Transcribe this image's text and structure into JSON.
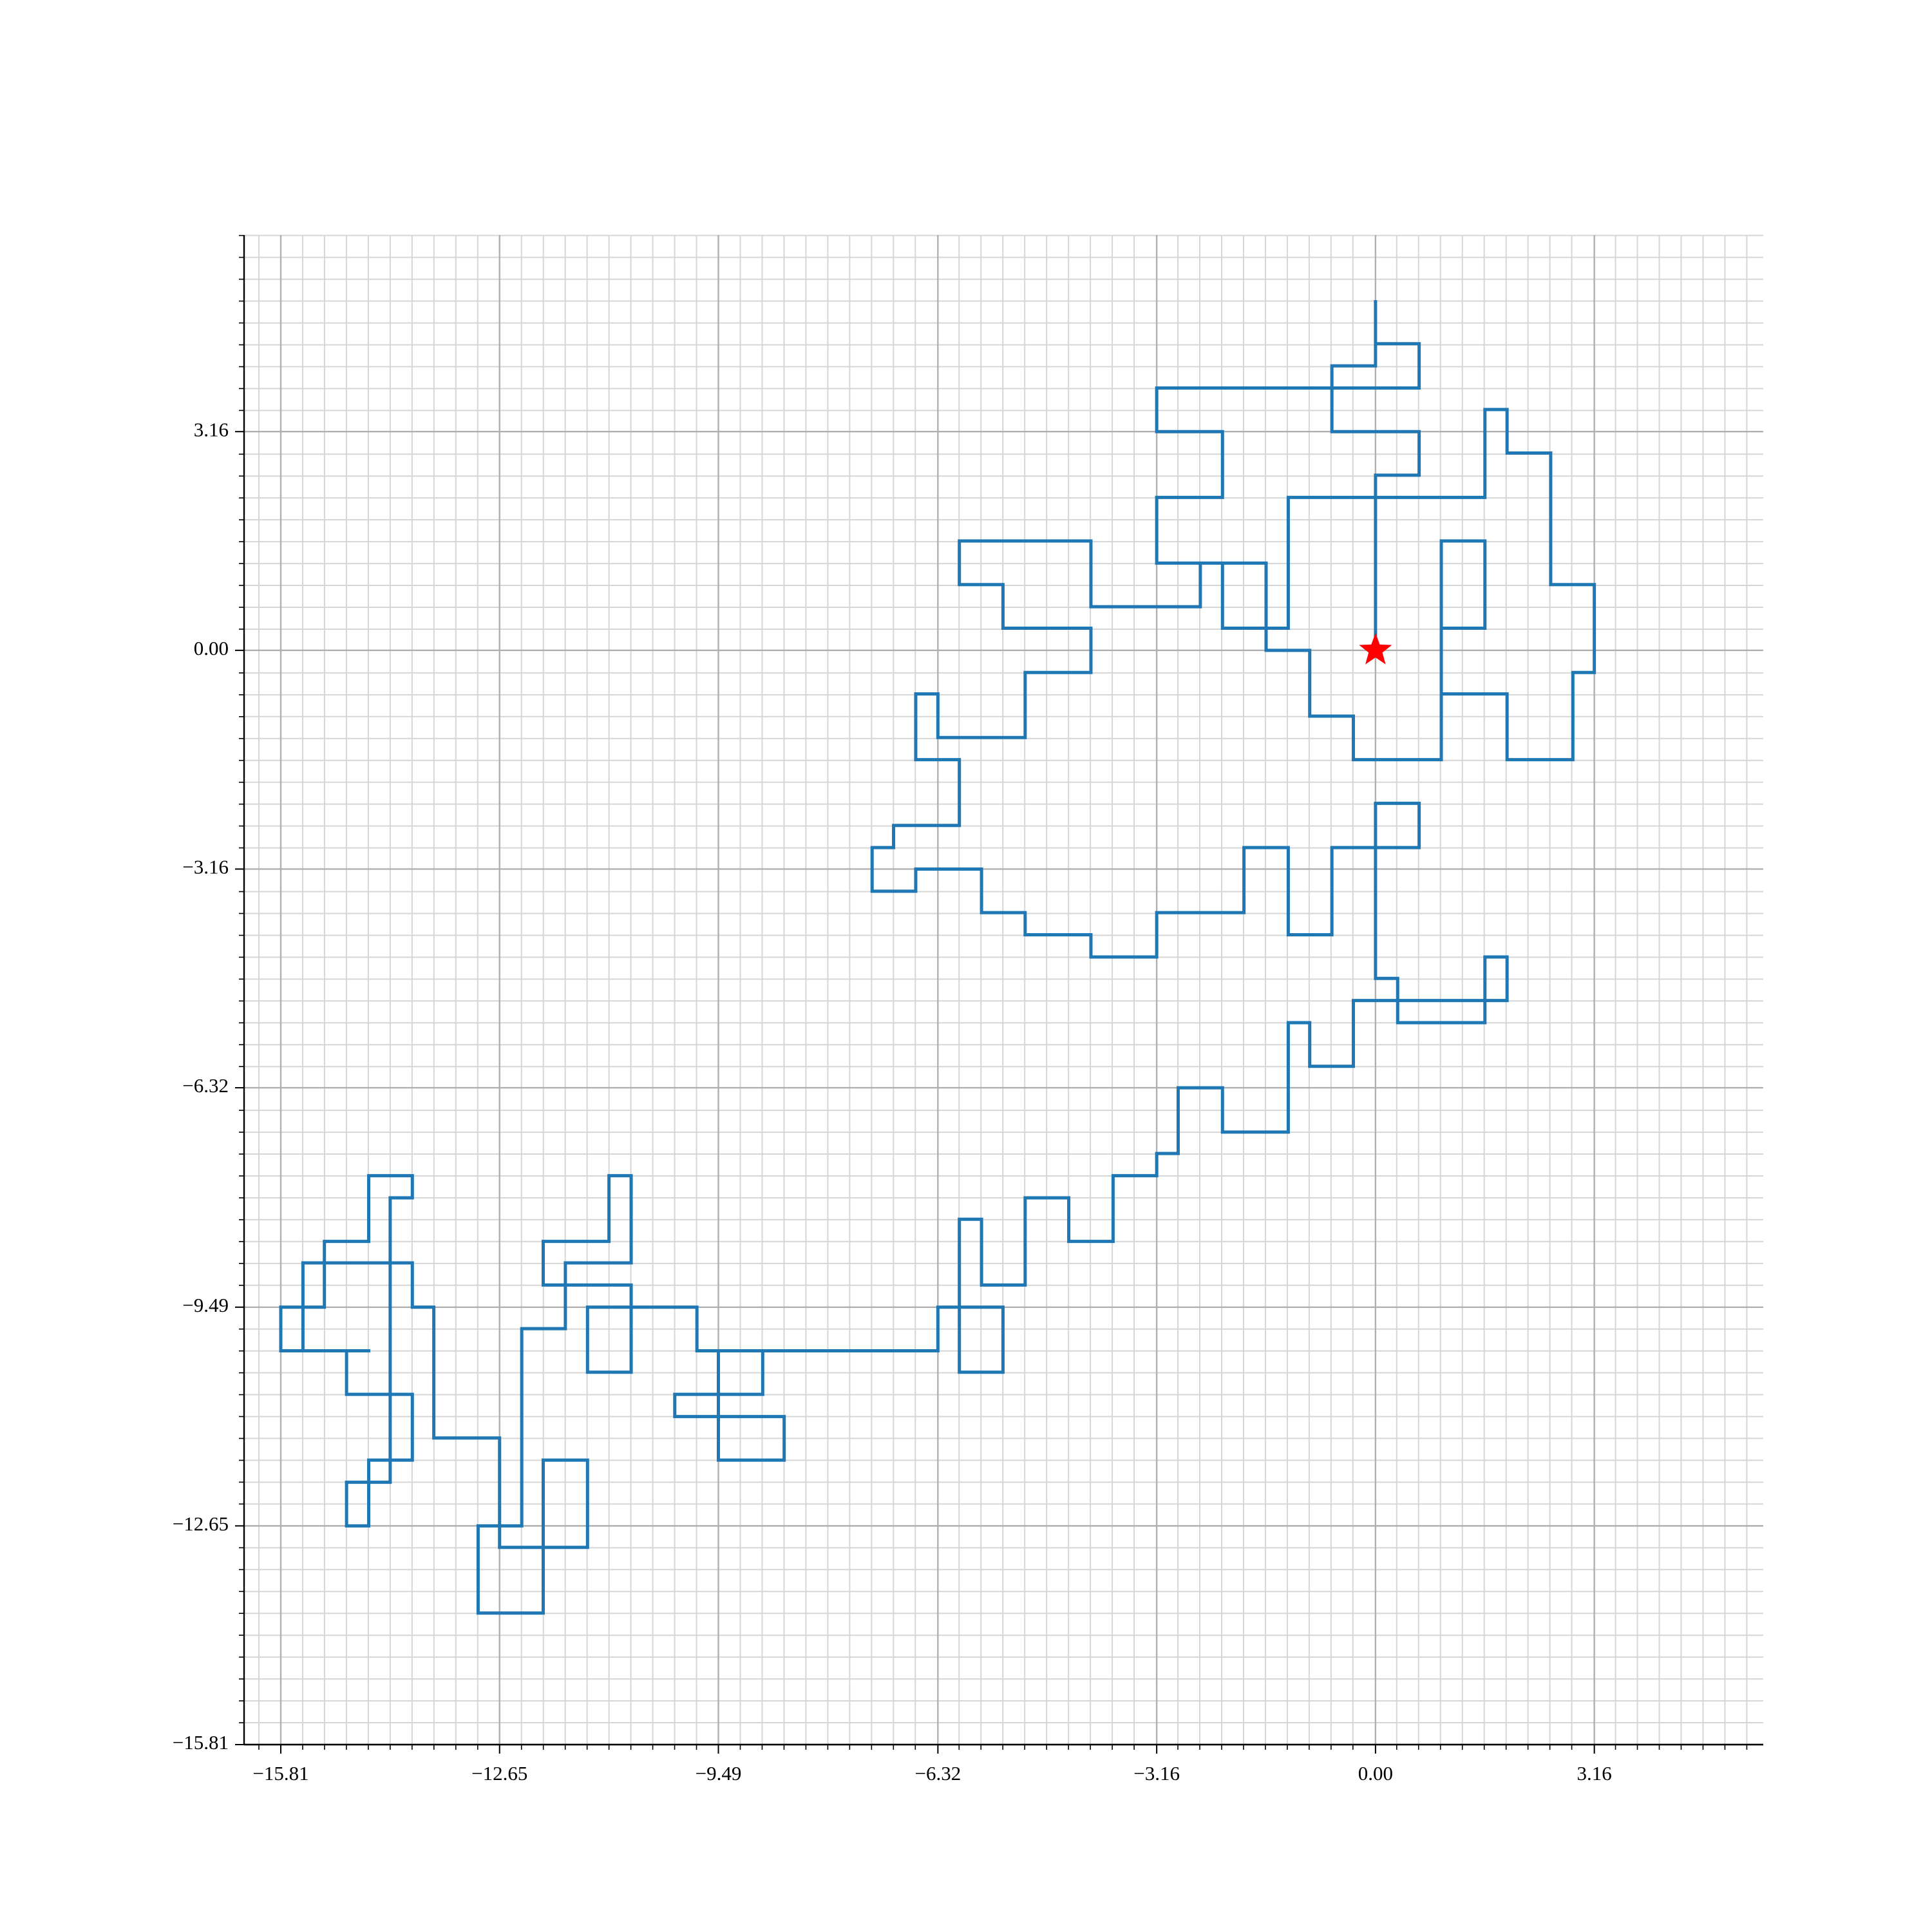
{
  "chart_data": {
    "type": "line",
    "color": "#1f77b4",
    "grid": true,
    "minor_divisions": 10,
    "xlim": [
      -16.34,
      5.6
    ],
    "ylim": [
      -15.81,
      6.0
    ],
    "xticks": [
      {
        "value": -15.81,
        "label": "−15.81"
      },
      {
        "value": -12.65,
        "label": "−12.65"
      },
      {
        "value": -9.49,
        "label": "−9.49"
      },
      {
        "value": -6.32,
        "label": "−6.32"
      },
      {
        "value": -3.16,
        "label": "−3.16"
      },
      {
        "value": 0,
        "label": "0.00"
      },
      3.16
    ],
    "yticks": [
      {
        "value": -15.81,
        "label": "−15.81"
      },
      {
        "value": -12.65,
        "label": "−12.65"
      },
      {
        "value": -9.49,
        "label": "−9.49"
      },
      {
        "value": -6.32,
        "label": "−6.32"
      },
      {
        "value": -3.16,
        "label": "−3.16"
      },
      {
        "value": 0,
        "label": "0.00"
      },
      3.16
    ],
    "start_marker": {
      "x": 0,
      "y": 0,
      "color": "#ff0000"
    },
    "x": [
      0,
      0,
      0.63,
      0.63,
      -0.63,
      -0.63,
      0,
      0,
      0,
      0.63,
      0.63,
      -3.16,
      -3.16,
      -2.21,
      -2.21,
      -3.16,
      -3.16,
      -2.21,
      -2.21,
      -1.26,
      -1.26,
      1.58,
      1.58,
      1.9,
      1.9,
      2.53,
      2.53,
      3.16,
      3.16,
      2.85,
      2.85,
      1.9,
      1.9,
      0.95,
      0.95,
      1.58,
      1.58,
      0.95,
      0.95,
      -0.32,
      -0.32,
      -0.95,
      -0.95,
      -1.58,
      -1.58,
      -2.53,
      -2.53,
      -4.11,
      -4.11,
      -6.01,
      -6.01,
      -5.38,
      -5.38,
      -4.11,
      -4.11,
      -5.06,
      -5.06,
      -6.32,
      -6.32,
      -6.64,
      -6.64,
      -6.01,
      -6.01,
      -6.96,
      -6.96,
      -7.27,
      -7.27,
      -6.64,
      -6.64,
      -5.69,
      -5.69,
      -5.06,
      -5.06,
      -4.11,
      -4.11,
      -3.16,
      -3.16,
      -1.9,
      -1.9,
      -1.26,
      -1.26,
      -0.63,
      -0.63,
      0.63,
      0.63,
      0,
      0,
      0.32,
      0.32,
      1.58,
      1.58,
      1.9,
      1.9,
      -0.32,
      -0.32,
      -0.95,
      -0.95,
      -1.26,
      -1.26,
      -2.21,
      -2.21,
      -2.85,
      -2.85,
      -3.16,
      -3.16,
      -3.79,
      -3.79,
      -4.43,
      -4.43,
      -5.06,
      -5.06,
      -5.69,
      -5.69,
      -6.01,
      -6.01,
      -5.38,
      -5.38,
      -6.32,
      -6.32,
      -9.49,
      -9.49,
      -8.54,
      -8.54,
      -10.12,
      -10.12,
      -8.85,
      -8.85,
      -9.8,
      -9.8,
      -11.38,
      -11.38,
      -10.75,
      -10.75,
      -12.02,
      -12.02,
      -11.07,
      -11.07,
      -10.75,
      -10.75,
      -11.7,
      -11.7,
      -12.33,
      -12.33,
      -12.96,
      -12.96,
      -12.02,
      -12.02,
      -11.38,
      -11.38,
      -12.65,
      -12.65,
      -13.6,
      -13.6,
      -13.91,
      -13.91,
      -15.49,
      -15.49,
      -14.86,
      -14.86,
      -13.91,
      -13.91,
      -14.54,
      -14.54,
      -14.86,
      -14.86,
      -14.23,
      -14.23,
      -13.91,
      -13.91,
      -14.54,
      -14.54,
      -15.18,
      -15.18,
      -15.81,
      -15.81,
      -14.54
    ],
    "y": [
      0,
      2.53,
      2.53,
      3.16,
      3.16,
      4.11,
      4.11,
      5.06,
      4.43,
      4.43,
      3.79,
      3.79,
      3.16,
      3.16,
      2.21,
      2.21,
      1.26,
      1.26,
      0.32,
      0.32,
      2.21,
      2.21,
      3.48,
      3.48,
      2.85,
      2.85,
      0.95,
      0.95,
      -0.32,
      -0.32,
      -1.58,
      -1.58,
      -0.63,
      -0.63,
      0.32,
      0.32,
      1.58,
      1.58,
      -1.58,
      -1.58,
      -0.95,
      -0.95,
      0,
      0,
      1.26,
      1.26,
      0.63,
      0.63,
      1.58,
      1.58,
      0.95,
      0.95,
      0.32,
      0.32,
      -0.32,
      -0.32,
      -1.26,
      -1.26,
      -0.63,
      -0.63,
      -1.58,
      -1.58,
      -2.53,
      -2.53,
      -2.85,
      -2.85,
      -3.48,
      -3.48,
      -3.16,
      -3.16,
      -3.79,
      -3.79,
      -4.11,
      -4.11,
      -4.43,
      -4.43,
      -3.79,
      -3.79,
      -2.85,
      -2.85,
      -4.11,
      -4.11,
      -2.85,
      -2.85,
      -2.21,
      -2.21,
      -4.74,
      -4.74,
      -5.38,
      -5.38,
      -4.43,
      -4.43,
      -5.06,
      -5.06,
      -6.01,
      -6.01,
      -5.38,
      -5.38,
      -6.96,
      -6.96,
      -6.32,
      -6.32,
      -7.27,
      -7.27,
      -7.59,
      -7.59,
      -8.54,
      -8.54,
      -7.91,
      -7.91,
      -9.17,
      -9.17,
      -8.22,
      -8.22,
      -10.43,
      -10.43,
      -9.49,
      -9.49,
      -10.12,
      -10.12,
      -11.7,
      -11.7,
      -11.07,
      -11.07,
      -10.75,
      -10.75,
      -10.12,
      -10.12,
      -9.49,
      -9.49,
      -10.43,
      -10.43,
      -9.17,
      -9.17,
      -8.54,
      -8.54,
      -7.59,
      -7.59,
      -8.85,
      -8.85,
      -9.8,
      -9.8,
      -12.65,
      -12.65,
      -13.91,
      -13.91,
      -11.7,
      -11.7,
      -12.96,
      -12.96,
      -11.38,
      -11.38,
      -9.49,
      -9.49,
      -8.85,
      -8.85,
      -10.12,
      -10.12,
      -10.75,
      -10.75,
      -11.7,
      -11.7,
      -12.65,
      -12.65,
      -12.02,
      -12.02,
      -7.91,
      -7.91,
      -7.59,
      -7.59,
      -8.54,
      -8.54,
      -9.49,
      -9.49,
      -10.12,
      -10.12
    ]
  }
}
